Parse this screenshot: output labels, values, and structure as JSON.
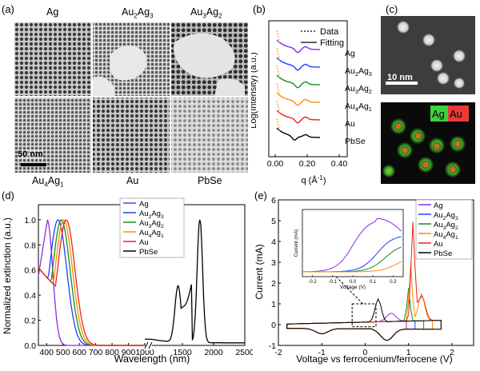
{
  "panels": {
    "a": {
      "letter": "(a)",
      "top_labels": [
        "Ag",
        "Au",
        "2",
        "Ag",
        "3",
        "Au",
        "3",
        "Ag",
        "2"
      ],
      "bottom_labels": [
        "Au",
        "4",
        "Ag",
        "1",
        "Au",
        "PbSe"
      ],
      "scale_bar": "50 nm"
    },
    "b": {
      "letter": "(b)",
      "ylabel": "Log(Intensity) (a.u.)",
      "xlabel_main": "q (Å",
      "xlabel_sup": "-1",
      "xlabel_close": ")",
      "legend": [
        "Data",
        "Fitting"
      ]
    },
    "c": {
      "letter": "(c)",
      "scale_bar": "10 nm",
      "element_labels": [
        "Ag",
        "Au"
      ],
      "colors": {
        "Ag": "#3fcf3f",
        "Au": "#e83a3a"
      }
    },
    "d": {
      "letter": "(d)"
    },
    "e": {
      "letter": "(e)"
    }
  },
  "series_colors": {
    "Ag": "#8b2be2",
    "Au2Ag3": "#1f3fff",
    "Au3Ag2": "#1a8a1a",
    "Au4Ag1": "#ff8c00",
    "Au": "#e8241a",
    "PbSe": "#000000"
  },
  "legend_names": {
    "Ag": [
      "Ag",
      ""
    ],
    "Au2Ag3": [
      "Au",
      "2",
      "Ag",
      "3"
    ],
    "Au3Ag2": [
      "Au",
      "3",
      "Ag",
      "2"
    ],
    "Au4Ag1": [
      "Au",
      "4",
      "Ag",
      "1"
    ],
    "Au": [
      "Au",
      ""
    ],
    "PbSe": [
      "PbSe",
      ""
    ]
  },
  "chart_data": [
    {
      "panel": "b",
      "type": "line",
      "xlabel": "q (Å-1)",
      "ylabel": "Log(Intensity) (a.u.)",
      "xlim": [
        0,
        0.45
      ],
      "x_ticks": [
        "0.00",
        "0.20",
        "0.40"
      ],
      "legend": [
        "Data",
        "Fitting"
      ],
      "series": [
        {
          "name": "Ag",
          "offset_rank": 0,
          "first_min_q": 0.14
        },
        {
          "name": "Au2Ag3",
          "offset_rank": 1,
          "first_min_q": 0.14
        },
        {
          "name": "Au3Ag2",
          "offset_rank": 2,
          "first_min_q": 0.14
        },
        {
          "name": "Au4Ag1",
          "offset_rank": 3,
          "first_min_q": 0.14
        },
        {
          "name": "Au",
          "offset_rank": 4,
          "first_min_q": 0.14
        },
        {
          "name": "PbSe",
          "offset_rank": 5,
          "first_min_q": 0.12
        }
      ]
    },
    {
      "panel": "d",
      "type": "line",
      "xlabel": "Wavelength (nm)",
      "ylabel": "Normalized extinction (a.u.)",
      "x_ticks": [
        "400",
        "500",
        "600",
        "700",
        "800",
        "900",
        "1000",
        "1500",
        "2000",
        "2500"
      ],
      "y_ticks": [
        "0.0",
        "0.2",
        "0.4",
        "0.6",
        "0.8",
        "1.0"
      ],
      "ylim": [
        0,
        1.12
      ],
      "axis_break": true,
      "series": [
        {
          "name": "Ag",
          "peak_nm": 405
        },
        {
          "name": "Au2Ag3",
          "peak_nm": 470
        },
        {
          "name": "Au3Ag2",
          "peak_nm": 490
        },
        {
          "name": "Au4Ag1",
          "peak_nm": 505
        },
        {
          "name": "Au",
          "peak_nm": 520
        },
        {
          "name": "PbSe",
          "peak_nm": 1780,
          "second_peak_nm": 1430
        }
      ]
    },
    {
      "panel": "e",
      "type": "line",
      "xlabel": "Voltage vs ferrocenium/ferrocene (V)",
      "ylabel": "Current (mA)",
      "xlim": [
        -2,
        2.5
      ],
      "ylim": [
        -1,
        6
      ],
      "x_ticks": [
        "-2",
        "-1",
        "0",
        "1",
        "2"
      ],
      "y_ticks": [
        "-1",
        "0",
        "1",
        "2",
        "3",
        "4",
        "5",
        "6"
      ],
      "inset": {
        "xlabel": "Voltage (V)",
        "ylabel": "Current (mA)",
        "x_ticks": [
          "-0.2",
          "-0.1",
          "0.0",
          "0.1",
          "0.2"
        ]
      },
      "series": [
        {
          "name": "Ag",
          "inset_plateau_mA": 0.72
        },
        {
          "name": "Au2Ag3",
          "inset_plateau_mA": 0.5
        },
        {
          "name": "Au3Ag2",
          "inset_plateau_mA": 0.38
        },
        {
          "name": "Au4Ag1",
          "inset_plateau_mA": 0.22
        },
        {
          "name": "Au",
          "peak_mA": 4.7,
          "peak_V": 1.1
        },
        {
          "name": "PbSe"
        }
      ]
    }
  ]
}
